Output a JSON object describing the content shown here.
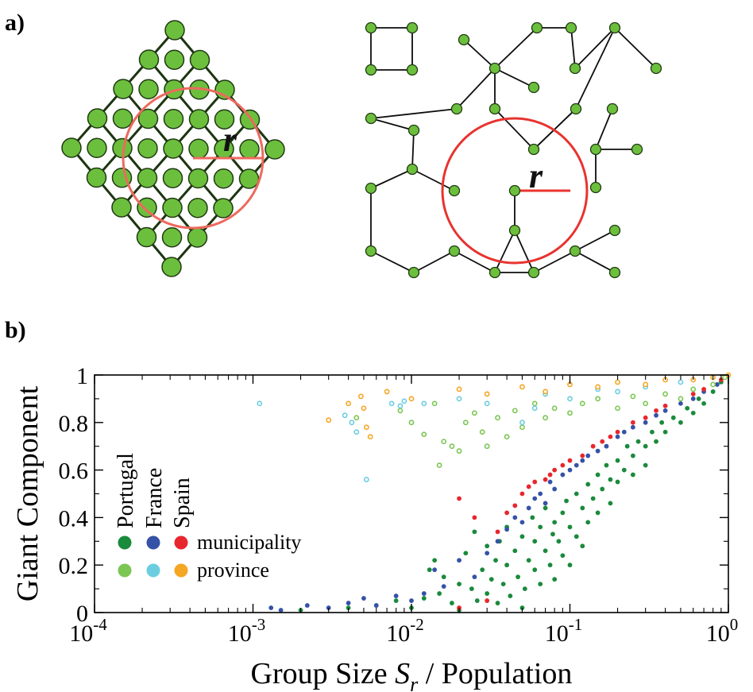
{
  "panels": {
    "a": {
      "label": "a)",
      "lattice": {
        "radius_label": "r"
      },
      "network": {
        "radius_label": "r"
      }
    },
    "b": {
      "label": "b)"
    }
  },
  "colors": {
    "node_fill": "#6cbf3d",
    "node_stroke": "#1f3a12",
    "edge": "#0d0d0d",
    "lattice_edge": "#1d3512",
    "circle": "#e8332f",
    "lattice_circle": "#ec6a5e"
  },
  "chart_data": {
    "type": "scatter",
    "title": "",
    "xlabel_main": "Group Size ",
    "xlabel_var": "S",
    "xlabel_sub": "r",
    "xlabel_rest": " / Population",
    "ylabel": "Giant Component",
    "x_scale": "log",
    "xlim": [
      0.0001,
      1
    ],
    "ylim": [
      0,
      1
    ],
    "x_ticks": [
      {
        "value": 0.0001,
        "base": "10",
        "exp": "-4"
      },
      {
        "value": 0.001,
        "base": "10",
        "exp": "-3"
      },
      {
        "value": 0.01,
        "base": "10",
        "exp": "-2"
      },
      {
        "value": 0.1,
        "base": "10",
        "exp": "-1"
      },
      {
        "value": 1,
        "base": "10",
        "exp": "0"
      }
    ],
    "y_ticks": [
      {
        "value": 0,
        "label": "0"
      },
      {
        "value": 0.2,
        "label": "0.2"
      },
      {
        "value": 0.4,
        "label": "0.4"
      },
      {
        "value": 0.6,
        "label": "0.6"
      },
      {
        "value": 0.8,
        "label": "0.8"
      },
      {
        "value": 1,
        "label": "1"
      }
    ],
    "grid": false,
    "legend": {
      "placement": "left",
      "countries": [
        "Portugal",
        "France",
        "Spain"
      ],
      "rows": [
        {
          "label": "municipality",
          "colors": [
            "#1a8a3c",
            "#3552a6",
            "#e8262d"
          ],
          "style": "filled"
        },
        {
          "label": "province",
          "colors": [
            "#7cc653",
            "#6ccde0",
            "#f5a623"
          ],
          "style": "filled"
        }
      ]
    },
    "series": [
      {
        "name": "Portugal municipality",
        "color": "#1a8a3c",
        "style": "filled",
        "points": [
          [
            0.002,
            0.01
          ],
          [
            0.004,
            0.02
          ],
          [
            0.006,
            0.03
          ],
          [
            0.008,
            0.05
          ],
          [
            0.01,
            0.02
          ],
          [
            0.012,
            0.06
          ],
          [
            0.013,
            0.18
          ],
          [
            0.014,
            0.22
          ],
          [
            0.015,
            0.08
          ],
          [
            0.016,
            0.15
          ],
          [
            0.018,
            0.04
          ],
          [
            0.02,
            0.12
          ],
          [
            0.02,
            0.01
          ],
          [
            0.022,
            0.25
          ],
          [
            0.024,
            0.1
          ],
          [
            0.025,
            0.34
          ],
          [
            0.026,
            0.05
          ],
          [
            0.028,
            0.18
          ],
          [
            0.03,
            0.28
          ],
          [
            0.03,
            0.08
          ],
          [
            0.032,
            0.14
          ],
          [
            0.034,
            0.22
          ],
          [
            0.035,
            0.04
          ],
          [
            0.036,
            0.3
          ],
          [
            0.038,
            0.12
          ],
          [
            0.04,
            0.2
          ],
          [
            0.04,
            0.36
          ],
          [
            0.042,
            0.07
          ],
          [
            0.045,
            0.26
          ],
          [
            0.047,
            0.15
          ],
          [
            0.05,
            0.32
          ],
          [
            0.05,
            0.02
          ],
          [
            0.052,
            0.1
          ],
          [
            0.055,
            0.22
          ],
          [
            0.058,
            0.4
          ],
          [
            0.06,
            0.18
          ],
          [
            0.06,
            0.3
          ],
          [
            0.065,
            0.12
          ],
          [
            0.065,
            0.36
          ],
          [
            0.07,
            0.26
          ],
          [
            0.07,
            0.44
          ],
          [
            0.075,
            0.2
          ],
          [
            0.078,
            0.33
          ],
          [
            0.08,
            0.38
          ],
          [
            0.08,
            0.14
          ],
          [
            0.085,
            0.3
          ],
          [
            0.09,
            0.42
          ],
          [
            0.09,
            0.24
          ],
          [
            0.095,
            0.47
          ],
          [
            0.1,
            0.36
          ],
          [
            0.1,
            0.2
          ],
          [
            0.11,
            0.5
          ],
          [
            0.11,
            0.32
          ],
          [
            0.12,
            0.44
          ],
          [
            0.12,
            0.28
          ],
          [
            0.13,
            0.54
          ],
          [
            0.13,
            0.38
          ],
          [
            0.14,
            0.48
          ],
          [
            0.15,
            0.58
          ],
          [
            0.15,
            0.42
          ],
          [
            0.16,
            0.52
          ],
          [
            0.17,
            0.62
          ],
          [
            0.18,
            0.56
          ],
          [
            0.18,
            0.46
          ],
          [
            0.2,
            0.64
          ],
          [
            0.2,
            0.55
          ],
          [
            0.22,
            0.6
          ],
          [
            0.23,
            0.7
          ],
          [
            0.25,
            0.66
          ],
          [
            0.25,
            0.58
          ],
          [
            0.27,
            0.72
          ],
          [
            0.3,
            0.7
          ],
          [
            0.3,
            0.62
          ],
          [
            0.33,
            0.76
          ],
          [
            0.35,
            0.72
          ],
          [
            0.38,
            0.8
          ],
          [
            0.4,
            0.76
          ],
          [
            0.45,
            0.82
          ],
          [
            0.5,
            0.8
          ],
          [
            0.55,
            0.86
          ],
          [
            0.6,
            0.84
          ],
          [
            0.65,
            0.9
          ],
          [
            0.7,
            0.88
          ],
          [
            0.8,
            0.93
          ],
          [
            0.9,
            0.97
          ],
          [
            1.0,
            1.0
          ]
        ]
      },
      {
        "name": "France municipality",
        "color": "#3552a6",
        "style": "filled",
        "points": [
          [
            0.0013,
            0.02
          ],
          [
            0.0015,
            0.01
          ],
          [
            0.0022,
            0.03
          ],
          [
            0.003,
            0.02
          ],
          [
            0.004,
            0.04
          ],
          [
            0.005,
            0.06
          ],
          [
            0.006,
            0.03
          ],
          [
            0.008,
            0.07
          ],
          [
            0.01,
            0.05
          ],
          [
            0.012,
            0.08
          ],
          [
            0.014,
            0.18
          ],
          [
            0.016,
            0.11
          ],
          [
            0.02,
            0.22
          ],
          [
            0.025,
            0.15
          ],
          [
            0.03,
            0.25
          ],
          [
            0.035,
            0.3
          ],
          [
            0.04,
            0.35
          ],
          [
            0.045,
            0.4
          ],
          [
            0.05,
            0.38
          ],
          [
            0.055,
            0.44
          ],
          [
            0.06,
            0.48
          ],
          [
            0.065,
            0.5
          ],
          [
            0.07,
            0.46
          ],
          [
            0.075,
            0.55
          ],
          [
            0.08,
            0.52
          ],
          [
            0.09,
            0.58
          ],
          [
            0.1,
            0.6
          ],
          [
            0.11,
            0.62
          ],
          [
            0.12,
            0.64
          ],
          [
            0.13,
            0.66
          ],
          [
            0.15,
            0.68
          ],
          [
            0.17,
            0.7
          ],
          [
            0.2,
            0.74
          ],
          [
            0.22,
            0.76
          ],
          [
            0.25,
            0.78
          ],
          [
            0.3,
            0.8
          ],
          [
            0.35,
            0.83
          ],
          [
            0.4,
            0.85
          ],
          [
            0.5,
            0.88
          ],
          [
            0.6,
            0.9
          ],
          [
            0.7,
            0.93
          ],
          [
            0.85,
            0.96
          ]
        ]
      },
      {
        "name": "Spain municipality",
        "color": "#e8262d",
        "style": "filled",
        "points": [
          [
            0.02,
            0.48
          ],
          [
            0.02,
            0.02
          ],
          [
            0.025,
            0.4
          ],
          [
            0.03,
            0.05
          ],
          [
            0.035,
            0.34
          ],
          [
            0.04,
            0.42
          ],
          [
            0.045,
            0.45
          ],
          [
            0.05,
            0.5
          ],
          [
            0.055,
            0.53
          ],
          [
            0.06,
            0.55
          ],
          [
            0.07,
            0.56
          ],
          [
            0.075,
            0.58
          ],
          [
            0.08,
            0.6
          ],
          [
            0.09,
            0.62
          ],
          [
            0.1,
            0.64
          ],
          [
            0.12,
            0.66
          ],
          [
            0.14,
            0.7
          ],
          [
            0.16,
            0.72
          ],
          [
            0.18,
            0.74
          ],
          [
            0.2,
            0.76
          ],
          [
            0.25,
            0.8
          ],
          [
            0.3,
            0.82
          ],
          [
            0.35,
            0.85
          ],
          [
            0.4,
            0.87
          ],
          [
            0.5,
            0.9
          ],
          [
            0.6,
            0.92
          ],
          [
            0.7,
            0.94
          ],
          [
            0.8,
            0.96
          ],
          [
            0.9,
            0.98
          ]
        ]
      },
      {
        "name": "Portugal province",
        "color": "#7cc653",
        "style": "ring",
        "points": [
          [
            0.0045,
            0.82
          ],
          [
            0.0085,
            0.85
          ],
          [
            0.01,
            0.8
          ],
          [
            0.012,
            0.75
          ],
          [
            0.014,
            0.88
          ],
          [
            0.015,
            0.62
          ],
          [
            0.016,
            0.72
          ],
          [
            0.018,
            0.7
          ],
          [
            0.02,
            0.68
          ],
          [
            0.022,
            0.8
          ],
          [
            0.025,
            0.84
          ],
          [
            0.028,
            0.76
          ],
          [
            0.03,
            0.7
          ],
          [
            0.035,
            0.82
          ],
          [
            0.04,
            0.74
          ],
          [
            0.045,
            0.85
          ],
          [
            0.05,
            0.78
          ],
          [
            0.06,
            0.88
          ],
          [
            0.07,
            0.82
          ],
          [
            0.08,
            0.86
          ],
          [
            0.1,
            0.84
          ],
          [
            0.12,
            0.88
          ],
          [
            0.15,
            0.9
          ],
          [
            0.2,
            0.86
          ],
          [
            0.25,
            0.91
          ],
          [
            0.3,
            0.88
          ],
          [
            0.4,
            0.92
          ],
          [
            0.5,
            0.9
          ],
          [
            0.6,
            0.94
          ],
          [
            0.8,
            0.96
          ],
          [
            0.95,
            0.99
          ]
        ]
      },
      {
        "name": "France province",
        "color": "#6ccde0",
        "style": "ring",
        "points": [
          [
            0.0011,
            0.88
          ],
          [
            0.0038,
            0.83
          ],
          [
            0.0042,
            0.8
          ],
          [
            0.0045,
            0.76
          ],
          [
            0.0052,
            0.56
          ],
          [
            0.0075,
            0.88
          ],
          [
            0.0085,
            0.87
          ],
          [
            0.009,
            0.89
          ],
          [
            0.012,
            0.88
          ],
          [
            0.02,
            0.9
          ],
          [
            0.03,
            0.88
          ],
          [
            0.05,
            0.8
          ],
          [
            0.06,
            0.86
          ],
          [
            0.07,
            0.92
          ],
          [
            0.1,
            0.9
          ],
          [
            0.15,
            0.94
          ],
          [
            0.2,
            0.93
          ],
          [
            0.3,
            0.95
          ],
          [
            0.5,
            0.97
          ],
          [
            0.8,
            0.99
          ]
        ]
      },
      {
        "name": "Spain province",
        "color": "#f5a623",
        "style": "ring",
        "points": [
          [
            0.003,
            0.81
          ],
          [
            0.004,
            0.88
          ],
          [
            0.0048,
            0.91
          ],
          [
            0.005,
            0.86
          ],
          [
            0.0052,
            0.78
          ],
          [
            0.0055,
            0.74
          ],
          [
            0.007,
            0.93
          ],
          [
            0.01,
            0.9
          ],
          [
            0.02,
            0.94
          ],
          [
            0.03,
            0.92
          ],
          [
            0.05,
            0.95
          ],
          [
            0.07,
            0.93
          ],
          [
            0.1,
            0.96
          ],
          [
            0.15,
            0.95
          ],
          [
            0.2,
            0.97
          ],
          [
            0.3,
            0.96
          ],
          [
            0.4,
            0.98
          ],
          [
            0.6,
            0.98
          ],
          [
            0.8,
            0.99
          ],
          [
            1.0,
            1.0
          ]
        ]
      }
    ]
  }
}
